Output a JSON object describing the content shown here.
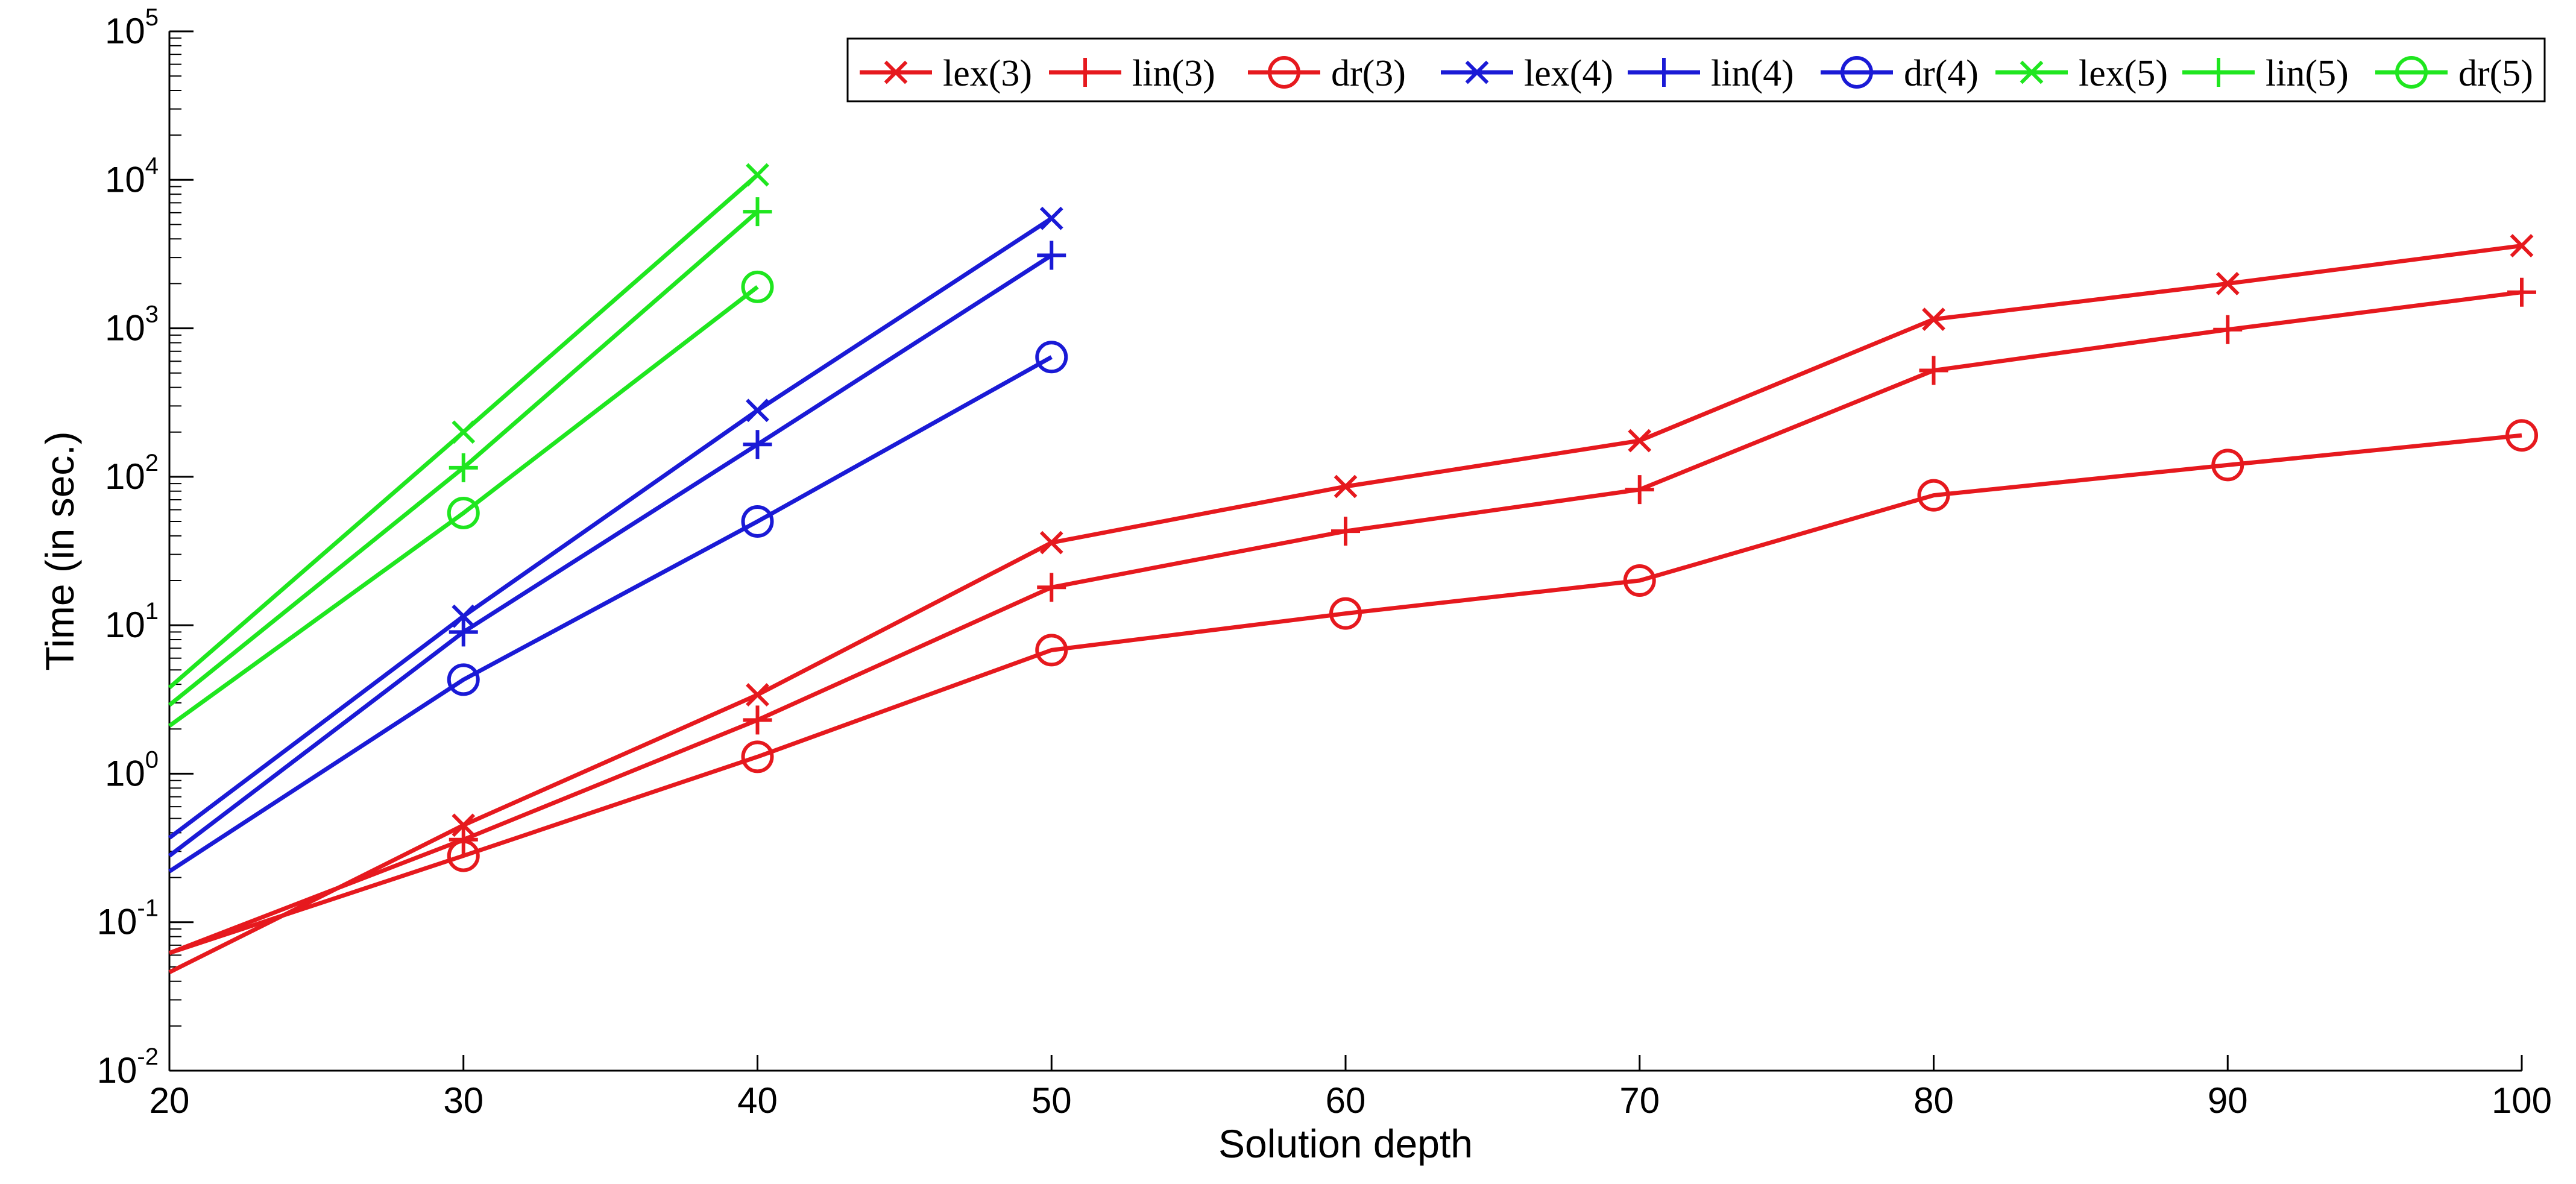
{
  "chart_data": {
    "type": "line",
    "xlabel": "Solution depth",
    "ylabel": "Time (in sec.)",
    "xlim": [
      20,
      100
    ],
    "ylim": [
      0.01,
      100000
    ],
    "y_scale": "log",
    "x_ticks": [
      "20",
      "30",
      "40",
      "50",
      "60",
      "70",
      "80",
      "90",
      "100"
    ],
    "y_ticks": [
      {
        "value": 0.01,
        "base": "10",
        "exp": "-2"
      },
      {
        "value": 0.1,
        "base": "10",
        "exp": "-1"
      },
      {
        "value": 1,
        "base": "10",
        "exp": "0"
      },
      {
        "value": 10,
        "base": "10",
        "exp": "1"
      },
      {
        "value": 100,
        "base": "10",
        "exp": "2"
      },
      {
        "value": 1000,
        "base": "10",
        "exp": "3"
      },
      {
        "value": 10000,
        "base": "10",
        "exp": "4"
      },
      {
        "value": 100000,
        "base": "10",
        "exp": "5"
      }
    ],
    "grid": false,
    "legend_position": "top-right",
    "series": [
      {
        "name": "lex(3)",
        "color": "#e6191e",
        "marker": "x",
        "x": [
          20,
          30,
          40,
          50,
          60,
          70,
          80,
          90,
          100
        ],
        "y": [
          0.046,
          0.45,
          3.4,
          36,
          86,
          175,
          1150,
          2000,
          3600
        ]
      },
      {
        "name": "lin(3)",
        "color": "#e6191e",
        "marker": "plus",
        "x": [
          20,
          30,
          40,
          50,
          60,
          70,
          80,
          90,
          100
        ],
        "y": [
          0.062,
          0.36,
          2.3,
          18,
          43,
          82,
          520,
          980,
          1750
        ]
      },
      {
        "name": "dr(3)",
        "color": "#e6191e",
        "marker": "circle",
        "x": [
          20,
          30,
          40,
          50,
          60,
          70,
          80,
          90,
          100
        ],
        "y": [
          0.062,
          0.28,
          1.3,
          6.8,
          12,
          20,
          75,
          120,
          190
        ]
      },
      {
        "name": "lex(4)",
        "color": "#1a1ad6",
        "marker": "x",
        "x": [
          20,
          30,
          40,
          50
        ],
        "y": [
          0.37,
          11.5,
          280,
          5500
        ]
      },
      {
        "name": "lin(4)",
        "color": "#1a1ad6",
        "marker": "plus",
        "x": [
          20,
          30,
          40,
          50
        ],
        "y": [
          0.28,
          9,
          165,
          3100
        ]
      },
      {
        "name": "dr(4)",
        "color": "#1a1ad6",
        "marker": "circle",
        "x": [
          20,
          30,
          40,
          50
        ],
        "y": [
          0.22,
          4.3,
          50,
          640
        ]
      },
      {
        "name": "lex(5)",
        "color": "#1fe61f",
        "marker": "x",
        "x": [
          20,
          30,
          40
        ],
        "y": [
          3.8,
          200,
          10800
        ]
      },
      {
        "name": "lin(5)",
        "color": "#1fe61f",
        "marker": "plus",
        "x": [
          20,
          30,
          40
        ],
        "y": [
          2.9,
          115,
          6100
        ]
      },
      {
        "name": "dr(5)",
        "color": "#1fe61f",
        "marker": "circle",
        "x": [
          20,
          30,
          40
        ],
        "y": [
          2.1,
          57,
          1900
        ]
      }
    ]
  }
}
